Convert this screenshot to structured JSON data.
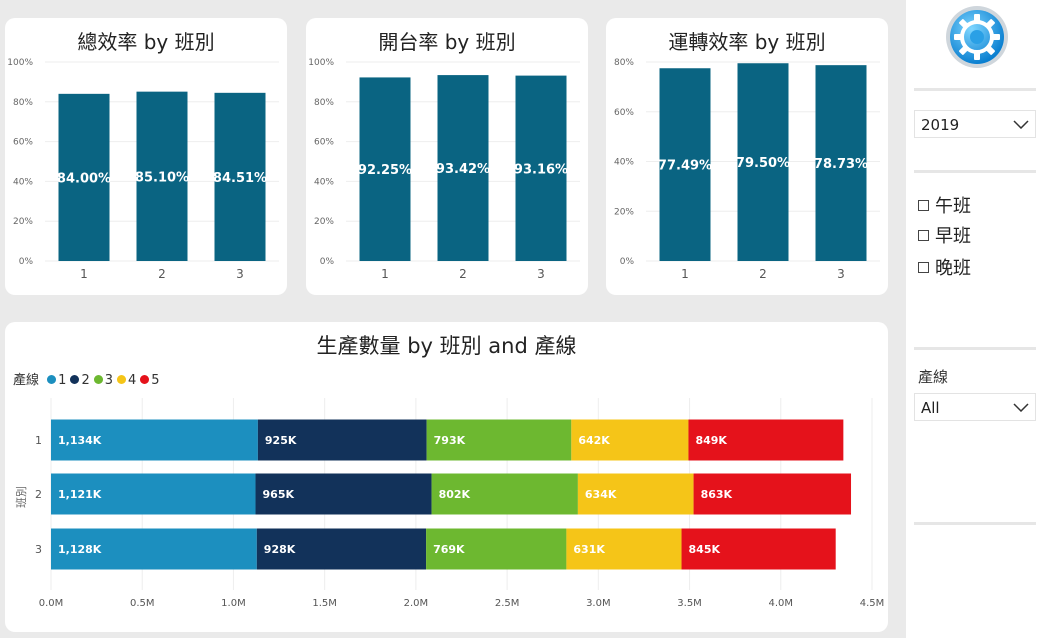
{
  "colors": {
    "bar": "#0a6482",
    "series": [
      "#1c8fbf",
      "#12325a",
      "#6db830",
      "#f5c518",
      "#e5121b"
    ]
  },
  "chart_data": [
    {
      "type": "bar",
      "title": "總效率 by 班別",
      "categories": [
        "1",
        "2",
        "3"
      ],
      "values": [
        84.0,
        85.1,
        84.51
      ],
      "data_labels": [
        "84.00%",
        "85.10%",
        "84.51%"
      ],
      "yticks": [
        "0%",
        "20%",
        "40%",
        "60%",
        "80%",
        "100%"
      ],
      "ylim": [
        0,
        100
      ]
    },
    {
      "type": "bar",
      "title": "開台率 by 班別",
      "categories": [
        "1",
        "2",
        "3"
      ],
      "values": [
        92.25,
        93.42,
        93.16
      ],
      "data_labels": [
        "92.25%",
        "93.42%",
        "93.16%"
      ],
      "yticks": [
        "0%",
        "20%",
        "40%",
        "60%",
        "80%",
        "100%"
      ],
      "ylim": [
        0,
        100
      ]
    },
    {
      "type": "bar",
      "title": "運轉效率 by 班別",
      "categories": [
        "1",
        "2",
        "3"
      ],
      "values": [
        77.49,
        79.5,
        78.73
      ],
      "data_labels": [
        "77.49%",
        "79.50%",
        "78.73%"
      ],
      "yticks": [
        "0%",
        "20%",
        "40%",
        "60%",
        "80%"
      ],
      "ylim": [
        0,
        80
      ]
    },
    {
      "type": "bar",
      "orientation": "horizontal",
      "stacked": true,
      "title": "生產數量 by 班別 and 產線",
      "ylabel": "班別",
      "categories": [
        "1",
        "2",
        "3"
      ],
      "legend_title": "產線",
      "series": [
        {
          "name": "1",
          "values": [
            1134,
            1121,
            1128
          ],
          "labels": [
            "1,134K",
            "1,121K",
            "1,128K"
          ]
        },
        {
          "name": "2",
          "values": [
            925,
            965,
            928
          ],
          "labels": [
            "925K",
            "965K",
            "928K"
          ]
        },
        {
          "name": "3",
          "values": [
            793,
            802,
            769
          ],
          "labels": [
            "793K",
            "802K",
            "769K"
          ]
        },
        {
          "name": "4",
          "values": [
            642,
            634,
            631
          ],
          "labels": [
            "642K",
            "634K",
            "631K"
          ]
        },
        {
          "name": "5",
          "values": [
            849,
            863,
            845
          ],
          "labels": [
            "849K",
            "863K",
            "845K"
          ]
        }
      ],
      "xticks": [
        "0.0M",
        "0.5M",
        "1.0M",
        "1.5M",
        "2.0M",
        "2.5M",
        "3.0M",
        "3.5M",
        "4.0M",
        "4.5M"
      ],
      "xlim": [
        0,
        4500
      ]
    }
  ],
  "sidebar": {
    "year_value": "2019",
    "shift_options": [
      "午班",
      "早班",
      "晚班"
    ],
    "line_label": "產線",
    "line_value": "All"
  }
}
